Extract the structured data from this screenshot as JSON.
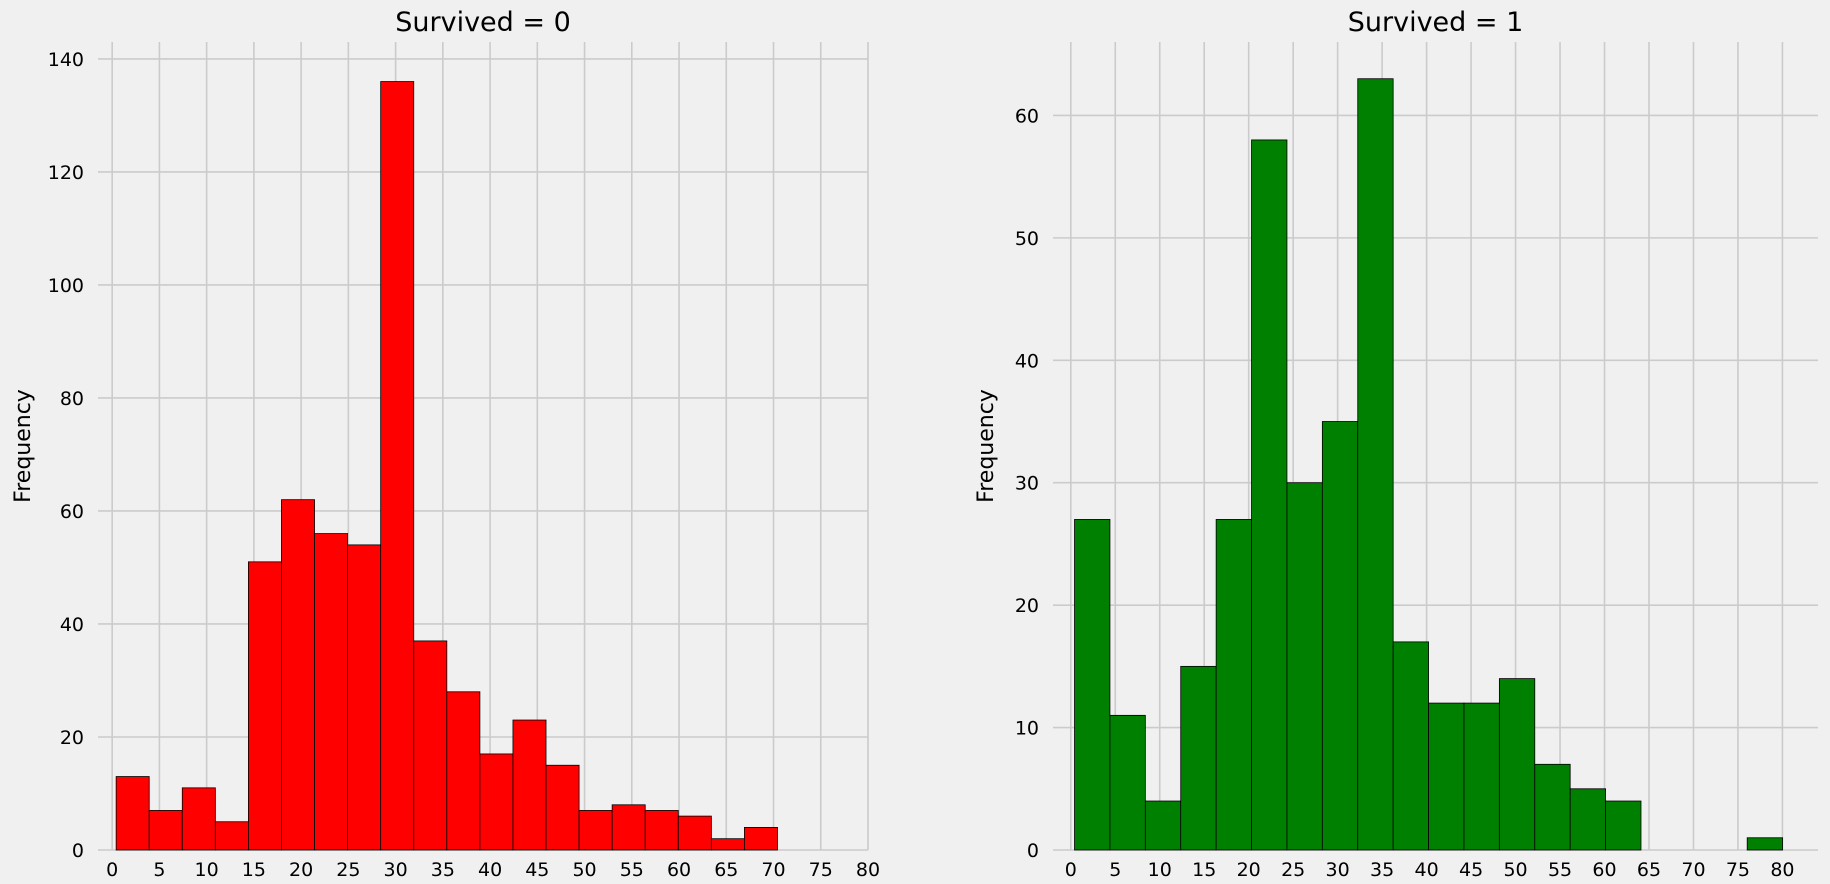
{
  "chart_data": [
    {
      "type": "histogram",
      "title": "Survived = 0",
      "ylabel": "Frequency",
      "xlabel": "",
      "color": "#ff0000",
      "edgecolor": "#000000",
      "bin_start": 0.42,
      "bin_width": 3.5,
      "values": [
        13,
        7,
        11,
        5,
        51,
        62,
        56,
        54,
        136,
        37,
        28,
        17,
        23,
        15,
        7,
        8,
        7,
        6,
        2,
        4
      ],
      "xlim": [
        -1.5,
        80
      ],
      "ylim": [
        0,
        143
      ],
      "xticks": [
        0,
        5,
        10,
        15,
        20,
        25,
        30,
        35,
        40,
        45,
        50,
        55,
        60,
        65,
        70,
        75,
        80
      ],
      "yticks": [
        0,
        20,
        40,
        60,
        80,
        100,
        120,
        140
      ],
      "grid": true
    },
    {
      "type": "histogram",
      "title": "Survived = 1",
      "ylabel": "Frequency",
      "xlabel": "",
      "color": "#008000",
      "edgecolor": "#000000",
      "bin_start": 0.42,
      "bin_width": 3.98,
      "values": [
        27,
        11,
        4,
        15,
        27,
        58,
        30,
        35,
        63,
        17,
        12,
        12,
        14,
        7,
        5,
        4,
        0,
        0,
        0,
        1
      ],
      "xlim": [
        -2,
        84
      ],
      "ylim": [
        0,
        66
      ],
      "xticks": [
        0,
        5,
        10,
        15,
        20,
        25,
        30,
        35,
        40,
        45,
        50,
        55,
        60,
        65,
        70,
        75,
        80
      ],
      "yticks": [
        0,
        10,
        20,
        30,
        40,
        50,
        60
      ],
      "grid": true
    }
  ]
}
